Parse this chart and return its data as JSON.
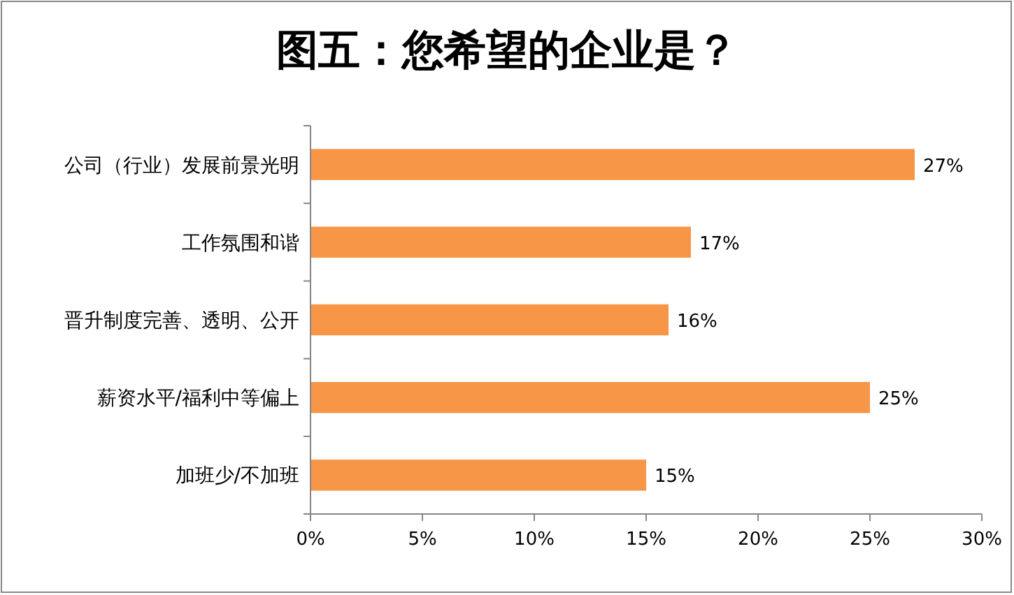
{
  "chart_data": {
    "type": "bar",
    "orientation": "horizontal",
    "title": "图五：您希望的企业是？",
    "categories": [
      "公司（行业）发展前景光明",
      "工作氛围和谐",
      "晋升制度完善、透明、公开",
      "薪资水平/福利中等偏上",
      "加班少/不加班"
    ],
    "values": [
      27,
      17,
      16,
      25,
      15
    ],
    "value_labels": [
      "27%",
      "17%",
      "16%",
      "25%",
      "15%"
    ],
    "color": "#f79646",
    "xlim": [
      0,
      30
    ],
    "xticks": [
      {
        "value": 0,
        "label": "0%"
      },
      {
        "value": 5,
        "label": "5%"
      },
      {
        "value": 10,
        "label": "10%"
      },
      {
        "value": 15,
        "label": "15%"
      },
      {
        "value": 20,
        "label": "20%"
      },
      {
        "value": 25,
        "label": "25%"
      },
      {
        "value": 30,
        "label": "30%"
      }
    ]
  }
}
